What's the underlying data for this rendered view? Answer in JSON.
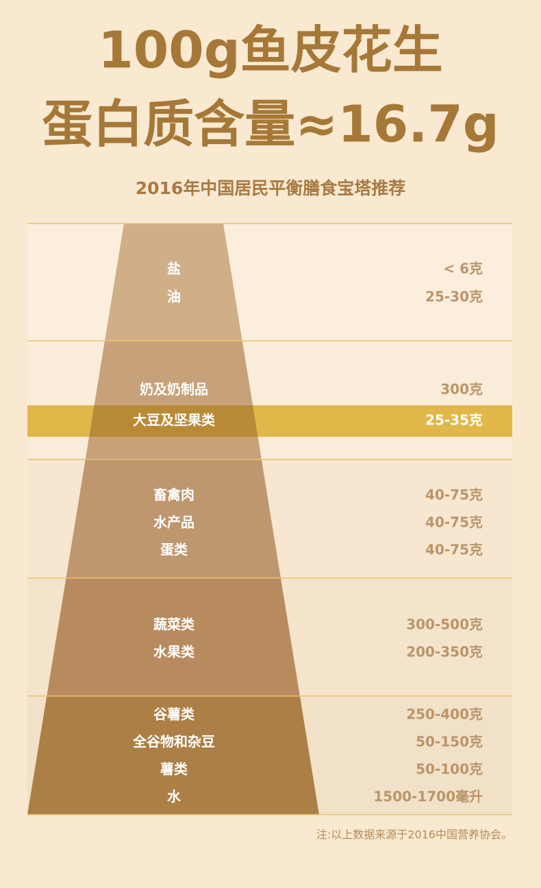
{
  "title": [
    "100g鱼皮花生",
    "蛋白质含量≈16.7g"
  ],
  "subtitle": "2016年中国居民平衡膳食宝塔推荐",
  "tiers": [
    {
      "items": [
        {
          "name": "盐",
          "amount": "< 6克"
        },
        {
          "name": "油",
          "amount": "25-30克"
        }
      ]
    },
    {
      "items": [
        {
          "name": "奶及奶制品",
          "amount": "300克"
        },
        {
          "name": "大豆及坚果类",
          "amount": "25-35克",
          "highlighted": true
        }
      ]
    },
    {
      "items": [
        {
          "name": "畜禽肉",
          "amount": "40-75克"
        },
        {
          "name": "水产品",
          "amount": "40-75克"
        },
        {
          "name": "蛋类",
          "amount": "40-75克"
        }
      ]
    },
    {
      "items": [
        {
          "name": "蔬菜类",
          "amount": "300-500克"
        },
        {
          "name": "水果类",
          "amount": "200-350克"
        }
      ]
    },
    {
      "items": [
        {
          "name": "谷薯类",
          "amount": "250-400克"
        },
        {
          "name": "全谷物和杂豆",
          "amount": "50-150克"
        },
        {
          "name": "薯类",
          "amount": "50-100克"
        },
        {
          "name": "水",
          "amount": "1500-1700毫升"
        }
      ]
    }
  ],
  "footnote": "注:以上数据来源于2016中国营养协会。"
}
